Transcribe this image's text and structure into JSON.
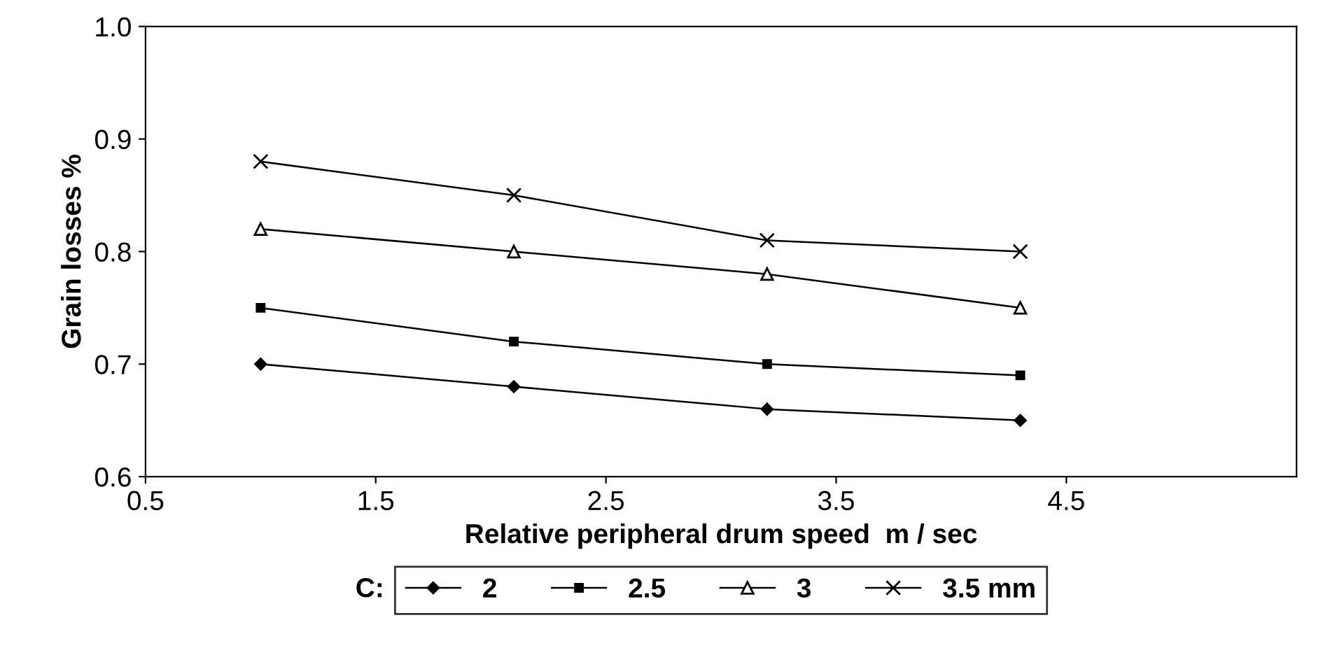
{
  "chart_data": {
    "type": "line",
    "xlabel": "Relative peripheral drum speed  m / sec",
    "ylabel": "Grain losses %",
    "legend_title": "C:",
    "legend": "bottom",
    "grid": false,
    "line_style": "solid",
    "xlim": [
      0.5,
      5.5
    ],
    "xticks": [
      0.5,
      1.5,
      2.5,
      3.5,
      4.5
    ],
    "ylim": [
      0.6,
      1.0
    ],
    "yticks": [
      0.6,
      0.7,
      0.8,
      0.9,
      {
        "value": 1.0,
        "label": "1.0"
      }
    ],
    "series": [
      {
        "name": "2",
        "color": "#000000",
        "marker": "diamond",
        "x": [
          1.0,
          2.1,
          3.2,
          4.3
        ],
        "values": [
          0.7,
          0.68,
          0.66,
          0.65
        ]
      },
      {
        "name": "2.5",
        "color": "#000000",
        "marker": "square",
        "x": [
          1.0,
          2.1,
          3.2,
          4.3
        ],
        "values": [
          0.75,
          0.72,
          0.7,
          0.69
        ]
      },
      {
        "name": "3",
        "color": "#000000",
        "marker": "triangle",
        "x": [
          1.0,
          2.1,
          3.2,
          4.3
        ],
        "values": [
          0.82,
          0.8,
          0.78,
          0.75
        ]
      },
      {
        "name": "3.5 mm",
        "color": "#000000",
        "marker": "cross",
        "x": [
          1.0,
          2.1,
          3.2,
          4.3
        ],
        "values": [
          0.88,
          0.85,
          0.81,
          0.8
        ]
      }
    ]
  }
}
